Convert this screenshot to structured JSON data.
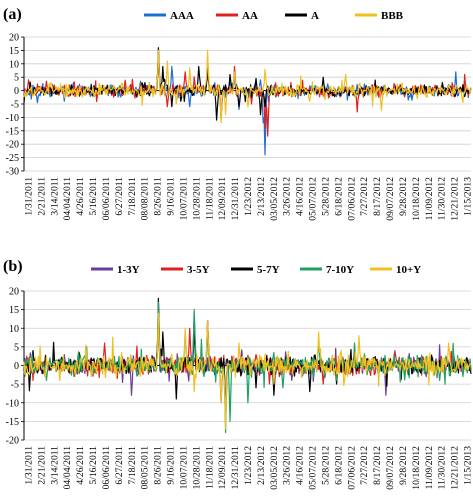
{
  "chart_data": [
    {
      "panel_label": "(a)",
      "type": "line",
      "ylim": [
        -30,
        20
      ],
      "yticks": [
        20,
        15,
        10,
        5,
        0,
        -5,
        -10,
        -15,
        -20,
        -25,
        -30
      ],
      "x_tick_labels": [
        "1/31/2011",
        "2/21/2011",
        "3/14/2011",
        "04/04/2011",
        "4/26/2011",
        "5/16/2011",
        "06/06/2011",
        "6/27/2011",
        "7/18/2011",
        "08/08/2011",
        "8/26/2011",
        "9/16/2011",
        "10/07/2011",
        "10/28/2011",
        "11/18/2011",
        "12/09/2011",
        "12/31/2011",
        "1/23/2012",
        "2/13/2012",
        "03/05/2012",
        "3/26/2012",
        "4/16/2012",
        "05/07/2012",
        "5/28/2012",
        "6/18/2012",
        "07/06/2012",
        "7/27/2012",
        "8/17/2012",
        "09/07/2012",
        "9/28/2012",
        "10/18/2012",
        "11/09/2012",
        "11/30/2012",
        "12/21/2012",
        "1/15/2013"
      ],
      "grid": "horizontal",
      "legend_position": "top",
      "series": [
        {
          "name": "AAA",
          "color": "#1f6fd0",
          "amp": 1.1,
          "seed": 11,
          "spikes": [
            [
              0.03,
              -4.5
            ],
            [
              0.26,
              3.5
            ],
            [
              0.3,
              13
            ],
            [
              0.33,
              9
            ],
            [
              0.37,
              -6
            ],
            [
              0.41,
              12
            ],
            [
              0.44,
              -10
            ],
            [
              0.46,
              3
            ],
            [
              0.47,
              5
            ],
            [
              0.48,
              -7
            ],
            [
              0.53,
              4
            ],
            [
              0.54,
              -24
            ],
            [
              0.535,
              -12
            ],
            [
              0.68,
              2.5
            ],
            [
              0.86,
              -3.5
            ],
            [
              0.965,
              7
            ],
            [
              0.97,
              -2
            ]
          ]
        },
        {
          "name": "AA",
          "color": "#e02020",
          "amp": 1.1,
          "seed": 23,
          "spikes": [
            [
              0.01,
              4
            ],
            [
              0.05,
              3.5
            ],
            [
              0.3,
              14
            ],
            [
              0.32,
              -6
            ],
            [
              0.36,
              7
            ],
            [
              0.41,
              10
            ],
            [
              0.44,
              -11
            ],
            [
              0.47,
              9
            ],
            [
              0.51,
              -5
            ],
            [
              0.54,
              -14
            ],
            [
              0.545,
              -17
            ],
            [
              0.69,
              -2
            ],
            [
              0.745,
              -8
            ],
            [
              0.92,
              2
            ]
          ]
        },
        {
          "name": "A",
          "color": "#000000",
          "amp": 1.0,
          "seed": 37,
          "spikes": [
            [
              0.27,
              3
            ],
            [
              0.3,
              16
            ],
            [
              0.31,
              9
            ],
            [
              0.33,
              -6
            ],
            [
              0.35,
              -4
            ],
            [
              0.39,
              9
            ],
            [
              0.41,
              8
            ],
            [
              0.43,
              -11
            ],
            [
              0.46,
              6
            ],
            [
              0.48,
              -6
            ],
            [
              0.52,
              4.5
            ],
            [
              0.53,
              -9
            ],
            [
              0.54,
              -6
            ],
            [
              0.67,
              5
            ],
            [
              0.74,
              -2
            ]
          ]
        },
        {
          "name": "BBB",
          "color": "#f0c020",
          "amp": 1.2,
          "seed": 53,
          "spikes": [
            [
              0.06,
              3
            ],
            [
              0.22,
              2.5
            ],
            [
              0.3,
              15
            ],
            [
              0.32,
              11
            ],
            [
              0.34,
              -5
            ],
            [
              0.37,
              8.5
            ],
            [
              0.41,
              15
            ],
            [
              0.44,
              -12
            ],
            [
              0.45,
              -9
            ],
            [
              0.47,
              7
            ],
            [
              0.5,
              -6
            ],
            [
              0.54,
              8
            ],
            [
              0.64,
              -4
            ],
            [
              0.72,
              6
            ],
            [
              0.8,
              -7.5
            ],
            [
              0.88,
              -3
            ],
            [
              0.95,
              2
            ]
          ]
        }
      ]
    },
    {
      "panel_label": "(b)",
      "type": "line",
      "ylim": [
        -20,
        20
      ],
      "yticks": [
        20,
        15,
        10,
        5,
        0,
        -5,
        -10,
        -15,
        -20
      ],
      "x_tick_labels": [
        "1/31/2011",
        "2/21/2011",
        "3/14/2011",
        "04/04/2011",
        "4/26/2011",
        "5/16/2011",
        "06/06/2011",
        "6/27/2011",
        "7/18/2011",
        "08/05/2011",
        "8/26/2011",
        "9/16/2011",
        "10/07/2011",
        "10/28/2011",
        "11/18/2011",
        "12/09/2011",
        "12/31/2011",
        "1/23/2012",
        "2/13/2012",
        "03/05/2012",
        "3/26/2012",
        "4/16/2012",
        "05/07/2012",
        "5/28/2012",
        "6/18/2012",
        "07/06/2012",
        "7/27/2012",
        "8/17/2012",
        "09/07/2012",
        "9/28/2012",
        "10/18/2012",
        "11/09/2012",
        "11/30/2012",
        "12/21/2012",
        "1/15/2013"
      ],
      "grid": "horizontal",
      "legend_position": "top",
      "series": [
        {
          "name": "1-3Y",
          "color": "#6a3d9a",
          "amp": 1.1,
          "seed": 71,
          "spikes": [
            [
              0.24,
              -8
            ],
            [
              0.3,
              12
            ],
            [
              0.38,
              14
            ],
            [
              0.44,
              -10
            ],
            [
              0.6,
              -4
            ],
            [
              0.81,
              -8
            ],
            [
              0.9,
              -3
            ]
          ]
        },
        {
          "name": "3-5Y",
          "color": "#e02020",
          "amp": 1.2,
          "seed": 83,
          "spikes": [
            [
              0.18,
              6
            ],
            [
              0.3,
              16
            ],
            [
              0.37,
              10
            ],
            [
              0.41,
              12
            ],
            [
              0.45,
              -12
            ],
            [
              0.55,
              -5
            ],
            [
              0.67,
              -5
            ],
            [
              0.83,
              4
            ]
          ]
        },
        {
          "name": "5-7Y",
          "color": "#000000",
          "amp": 1.2,
          "seed": 97,
          "spikes": [
            [
              0.02,
              4
            ],
            [
              0.3,
              18
            ],
            [
              0.31,
              9
            ],
            [
              0.34,
              -9
            ],
            [
              0.38,
              10
            ],
            [
              0.41,
              12
            ],
            [
              0.45,
              -13
            ],
            [
              0.52,
              -6
            ],
            [
              0.56,
              -8
            ],
            [
              0.64,
              -7
            ],
            [
              0.7,
              -5
            ]
          ]
        },
        {
          "name": "7-10Y",
          "color": "#1fa060",
          "amp": 1.3,
          "seed": 109,
          "spikes": [
            [
              0.05,
              -4
            ],
            [
              0.14,
              5
            ],
            [
              0.3,
              17
            ],
            [
              0.36,
              9
            ],
            [
              0.38,
              15
            ],
            [
              0.41,
              10
            ],
            [
              0.45,
              -18
            ],
            [
              0.46,
              -15
            ],
            [
              0.5,
              -10
            ],
            [
              0.58,
              -6
            ],
            [
              0.66,
              5
            ],
            [
              0.7,
              -4
            ],
            [
              0.74,
              6
            ],
            [
              0.93,
              -4
            ]
          ]
        },
        {
          "name": "10+Y",
          "color": "#f0c020",
          "amp": 1.4,
          "seed": 127,
          "spikes": [
            [
              0.08,
              -4
            ],
            [
              0.15,
              -3
            ],
            [
              0.3,
              14
            ],
            [
              0.36,
              10
            ],
            [
              0.38,
              -7
            ],
            [
              0.41,
              12
            ],
            [
              0.44,
              -10
            ],
            [
              0.45,
              -17
            ],
            [
              0.48,
              6
            ],
            [
              0.56,
              -5
            ],
            [
              0.66,
              9
            ],
            [
              0.71,
              4
            ],
            [
              0.75,
              8
            ],
            [
              0.95,
              6
            ]
          ]
        }
      ]
    }
  ]
}
